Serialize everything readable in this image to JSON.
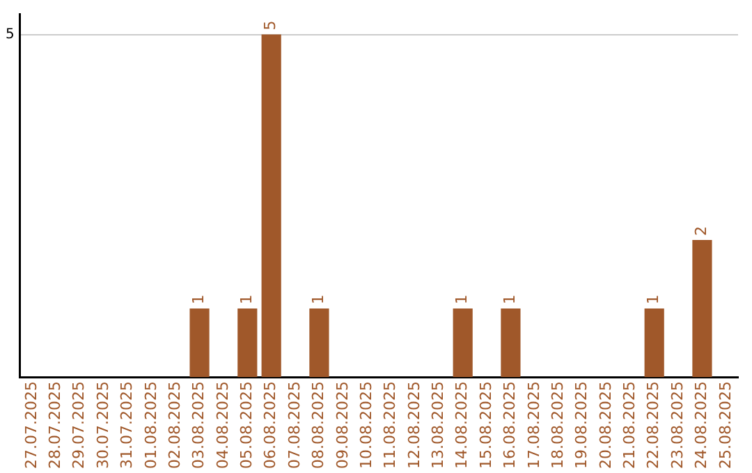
{
  "chart_data": {
    "type": "bar",
    "categories": [
      "27.07.2025",
      "28.07.2025",
      "29.07.2025",
      "30.07.2025",
      "31.07.2025",
      "01.08.2025",
      "02.08.2025",
      "03.08.2025",
      "04.08.2025",
      "05.08.2025",
      "06.08.2025",
      "07.08.2025",
      "08.08.2025",
      "09.08.2025",
      "10.08.2025",
      "11.08.2025",
      "12.08.2025",
      "13.08.2025",
      "14.08.2025",
      "15.08.2025",
      "16.08.2025",
      "17.08.2025",
      "18.08.2025",
      "19.08.2025",
      "20.08.2025",
      "21.08.2025",
      "22.08.2025",
      "23.08.2025",
      "24.08.2025",
      "25.08.2025"
    ],
    "values": [
      0,
      0,
      0,
      0,
      0,
      0,
      0,
      1,
      0,
      1,
      5,
      0,
      1,
      0,
      0,
      0,
      0,
      0,
      1,
      0,
      1,
      0,
      0,
      0,
      0,
      0,
      1,
      0,
      2,
      0
    ],
    "color": "#a0582a",
    "value_labels": [
      null,
      null,
      null,
      null,
      null,
      null,
      null,
      "1",
      null,
      "1",
      "5",
      null,
      "1",
      null,
      null,
      null,
      null,
      null,
      "1",
      null,
      "1",
      null,
      null,
      null,
      null,
      null,
      "1",
      null,
      "2",
      null
    ],
    "ylim": [
      0,
      5.3
    ],
    "yticks": [
      5
    ],
    "grid": "y",
    "legend": false
  }
}
